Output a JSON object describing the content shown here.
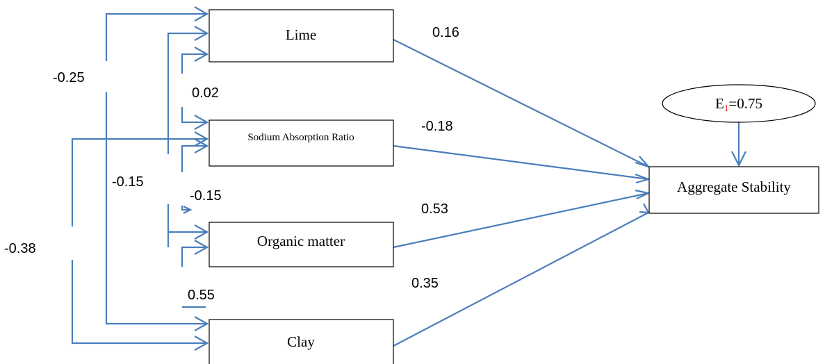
{
  "diagram": {
    "accent_color": "#4a7ebb",
    "nodes": {
      "lime": "Lime",
      "sar": "Sodium Absorption Ratio",
      "organic": "Organic matter",
      "clay": "Clay",
      "aggregate": "Aggregate Stability"
    },
    "error": {
      "prefix": "E",
      "subscript": "1",
      "subscript_color": "#ff0000",
      "value": "=0.75"
    },
    "paths": {
      "lime_to_aggregate": "0.16",
      "sar_to_aggregate": "-0.18",
      "organic_to_aggregate": "0.53",
      "clay_to_aggregate": "0.35"
    },
    "correlations": {
      "lime_sar": "0.02",
      "sar_organic": "-0.15",
      "organic_clay": "0.55",
      "lime_organic": "-0.15",
      "lime_clay": "-0.25",
      "sar_clay": "-0.38"
    }
  }
}
